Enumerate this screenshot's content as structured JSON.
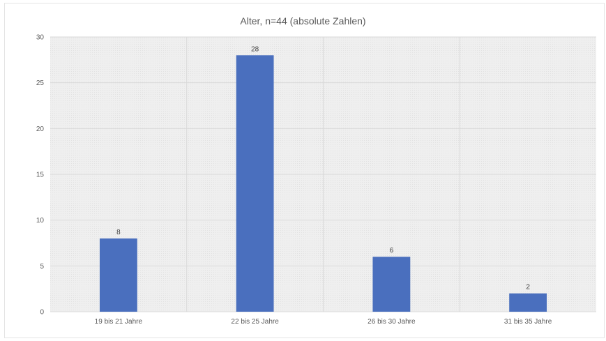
{
  "chart_data": {
    "type": "bar",
    "title": "Alter, n=44 (absolute Zahlen)",
    "xlabel": "",
    "ylabel": "",
    "categories": [
      "19 bis 21 Jahre",
      "22 bis 25 Jahre",
      "26 bis 30 Jahre",
      "31 bis 35 Jahre"
    ],
    "values": [
      8,
      28,
      6,
      2
    ],
    "ylim": [
      0,
      30
    ],
    "yticks": [
      0,
      5,
      10,
      15,
      20,
      25,
      30
    ],
    "grid": true,
    "legend": "none",
    "colors": {
      "bar": "#4a6fbe",
      "plot_background": "#efefef",
      "gridline": "#d9d9d9"
    }
  }
}
